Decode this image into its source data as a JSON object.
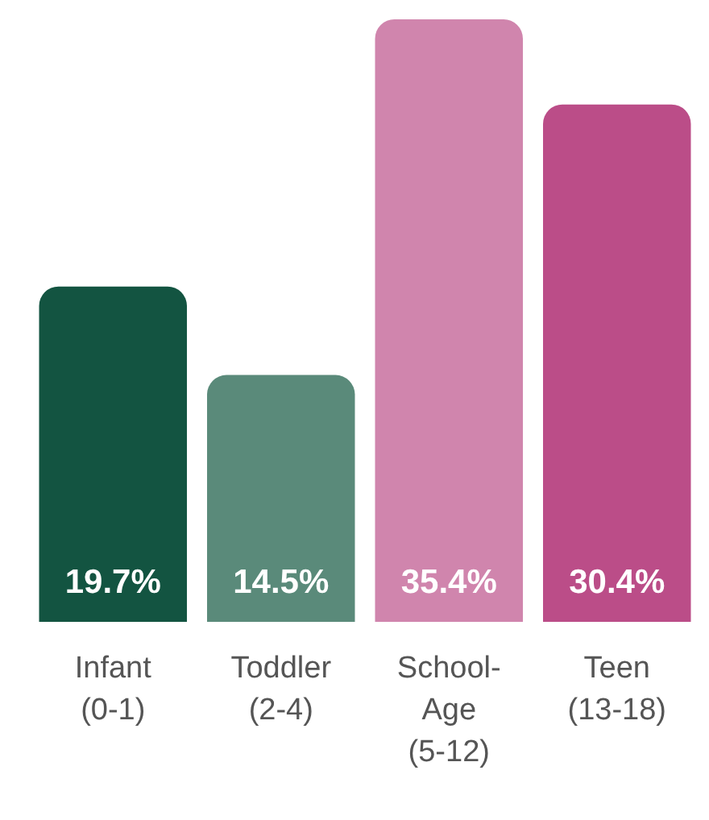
{
  "chart_data": {
    "type": "bar",
    "categories": [
      "Infant\n(0-1)",
      "Toddler\n(2-4)",
      "School-\nAge\n(5-12)",
      "Teen\n(13-18)"
    ],
    "values": [
      19.7,
      14.5,
      35.4,
      30.4
    ],
    "colors": [
      "#135441",
      "#5a8a7a",
      "#d085ad",
      "#bb4d88"
    ],
    "value_labels": [
      "19.7%",
      "14.5%",
      "35.4%",
      "30.4%"
    ],
    "tick_labels": "x"
  }
}
